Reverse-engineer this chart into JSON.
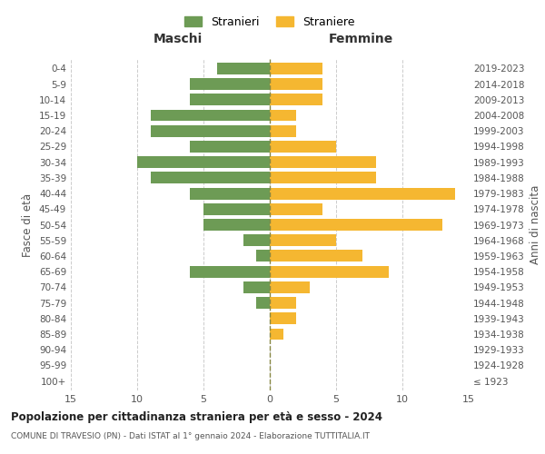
{
  "age_groups": [
    "100+",
    "95-99",
    "90-94",
    "85-89",
    "80-84",
    "75-79",
    "70-74",
    "65-69",
    "60-64",
    "55-59",
    "50-54",
    "45-49",
    "40-44",
    "35-39",
    "30-34",
    "25-29",
    "20-24",
    "15-19",
    "10-14",
    "5-9",
    "0-4"
  ],
  "birth_years": [
    "≤ 1923",
    "1924-1928",
    "1929-1933",
    "1934-1938",
    "1939-1943",
    "1944-1948",
    "1949-1953",
    "1954-1958",
    "1959-1963",
    "1964-1968",
    "1969-1973",
    "1974-1978",
    "1979-1983",
    "1984-1988",
    "1989-1993",
    "1994-1998",
    "1999-2003",
    "2004-2008",
    "2009-2013",
    "2014-2018",
    "2019-2023"
  ],
  "males": [
    0,
    0,
    0,
    0,
    0,
    1,
    2,
    6,
    1,
    2,
    5,
    5,
    6,
    9,
    10,
    6,
    9,
    9,
    6,
    6,
    4
  ],
  "females": [
    0,
    0,
    0,
    1,
    2,
    2,
    3,
    9,
    7,
    5,
    13,
    4,
    14,
    8,
    8,
    5,
    2,
    2,
    4,
    4,
    4
  ],
  "male_color": "#6d9b55",
  "female_color": "#f5b731",
  "background_color": "#ffffff",
  "grid_color": "#cccccc",
  "title": "Popolazione per cittadinanza straniera per età e sesso - 2024",
  "subtitle": "COMUNE DI TRAVESIO (PN) - Dati ISTAT al 1° gennaio 2024 - Elaborazione TUTTITALIA.IT",
  "legend_males": "Stranieri",
  "legend_females": "Straniere",
  "xlabel_left": "Maschi",
  "xlabel_right": "Femmine",
  "ylabel_left": "Fasce di età",
  "ylabel_right": "Anni di nascita",
  "xlim": 15
}
